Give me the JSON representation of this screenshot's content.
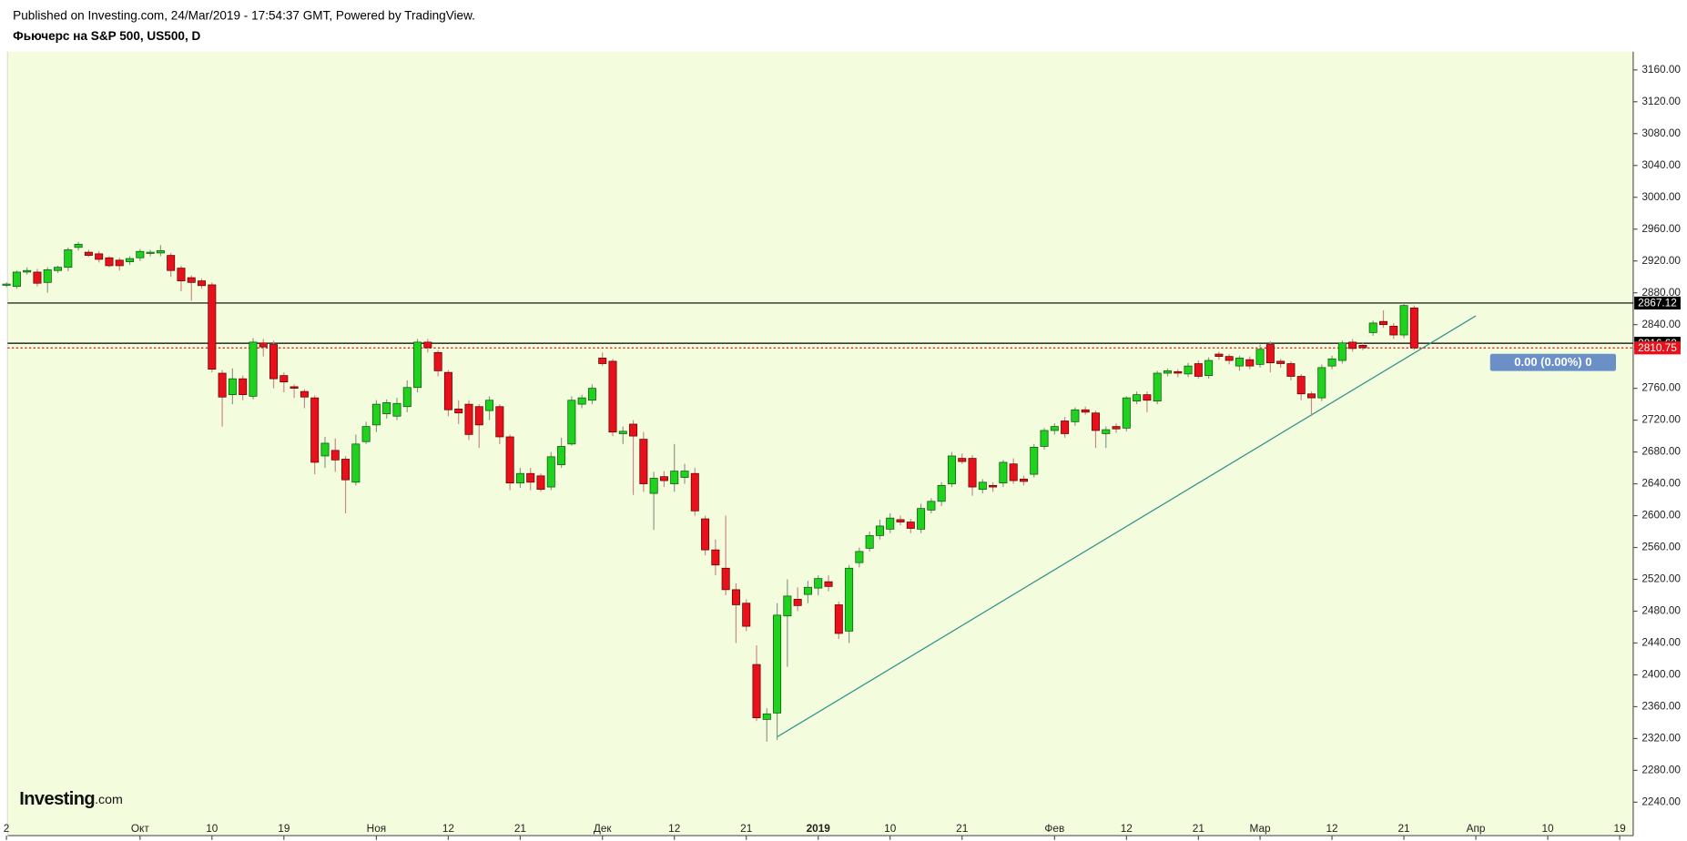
{
  "header": {
    "published": "Published on Investing.com, 24/Mar/2019 - 17:54:37 GMT, Powered by TradingView.",
    "title": "Фьючерс на S&P 500, US500, D"
  },
  "logo": {
    "brand": "Investing",
    "suffix": ".com"
  },
  "badge": "0.00 (0.00%) 0",
  "chart_data": {
    "type": "candlestick",
    "up_color": "#1ed21e",
    "down_color": "#e8101a",
    "background": "#f3fcdc",
    "categories": [
      "2",
      null,
      null,
      null,
      null,
      null,
      null,
      null,
      null,
      null,
      null,
      null,
      null,
      "Окт",
      null,
      null,
      null,
      null,
      null,
      null,
      "10",
      null,
      null,
      null,
      null,
      null,
      null,
      "19",
      null,
      null,
      null,
      null,
      null,
      null,
      null,
      null,
      "Ноя",
      null,
      null,
      null,
      null,
      null,
      null,
      "12",
      null,
      null,
      null,
      null,
      null,
      null,
      "21",
      null,
      null,
      null,
      null,
      null,
      null,
      null,
      "Дек",
      null,
      null,
      null,
      null,
      null,
      null,
      "12",
      null,
      null,
      null,
      null,
      null,
      null,
      "21",
      null,
      null,
      null,
      null,
      null,
      null,
      "2019",
      null,
      null,
      null,
      null,
      null,
      null,
      "10",
      null,
      null,
      null,
      null,
      null,
      null,
      "21",
      null,
      null,
      null,
      null,
      null,
      null,
      null,
      null,
      "Фев",
      null,
      null,
      null,
      null,
      null,
      null,
      "12",
      null,
      null,
      null,
      null,
      null,
      null,
      "21",
      null,
      null,
      null,
      null,
      null,
      "Мар",
      null,
      null,
      null,
      null,
      null,
      null,
      "12",
      null,
      null,
      null,
      null,
      null,
      null,
      "21",
      null,
      null,
      null,
      null,
      null,
      null,
      "Апр",
      null,
      null,
      null,
      null,
      null,
      null,
      "10",
      null,
      null,
      null,
      null,
      null,
      null,
      "19",
      null
    ],
    "open": [
      2890,
      2888,
      2906,
      2906,
      2893,
      2908,
      2912,
      2937,
      2931,
      2929,
      2924,
      2921,
      2919,
      2924,
      2930,
      2930,
      2927,
      2911,
      2899,
      2895,
      2890,
      2779,
      2752,
      2772,
      2750,
      2817,
      2815,
      2776,
      2762,
      2756,
      2748,
      2675,
      2682,
      2671,
      2642,
      2693,
      2714,
      2728,
      2725,
      2737,
      2761,
      2818,
      2805,
      2780,
      2734,
      2740,
      2737,
      2732,
      2737,
      2699,
      2641,
      2653,
      2650,
      2636,
      2664,
      2690,
      2740,
      2745,
      2798,
      2794,
      2703,
      2715,
      2696,
      2628,
      2649,
      2640,
      2648,
      2653,
      2596,
      2557,
      2534,
      2507,
      2490,
      2413,
      2344,
      2352,
      2474,
      2495,
      2501,
      2509,
      2517,
      2488,
      2455,
      2541,
      2559,
      2575,
      2583,
      2595,
      2592,
      2583,
      2607,
      2618,
      2640,
      2672,
      2672,
      2633,
      2638,
      2641,
      2665,
      2646,
      2652,
      2687,
      2707,
      2719,
      2718,
      2733,
      2729,
      2703,
      2712,
      2710,
      2744,
      2752,
      2744,
      2779,
      2781,
      2778,
      2791,
      2776,
      2803,
      2800,
      2788,
      2796,
      2790,
      2815,
      2794,
      2791,
      2775,
      2753,
      2748,
      2788,
      2795,
      2818,
      2814,
      2830,
      2844,
      2838,
      2827,
      2861,
      null,
      null,
      null,
      null,
      null,
      null,
      null,
      null,
      null,
      null,
      null,
      null,
      null,
      null,
      null,
      null,
      null,
      null,
      null,
      null,
      null
    ],
    "high": [
      2893,
      2908,
      2912,
      2910,
      2912,
      2914,
      2937,
      2944,
      2934,
      2932,
      2926,
      2924,
      2926,
      2935,
      2934,
      2940,
      2930,
      2914,
      2902,
      2898,
      2893,
      2783,
      2785,
      2776,
      2823,
      2822,
      2820,
      2780,
      2765,
      2759,
      2751,
      2699,
      2697,
      2675,
      2702,
      2718,
      2745,
      2746,
      2748,
      2770,
      2822,
      2822,
      2808,
      2783,
      2745,
      2745,
      2740,
      2750,
      2740,
      2702,
      2660,
      2660,
      2653,
      2680,
      2698,
      2750,
      2752,
      2765,
      2805,
      2797,
      2712,
      2720,
      2705,
      2655,
      2656,
      2690,
      2665,
      2660,
      2600,
      2570,
      2600,
      2515,
      2495,
      2437,
      2358,
      2490,
      2520,
      2510,
      2518,
      2525,
      2525,
      2492,
      2538,
      2560,
      2580,
      2595,
      2603,
      2600,
      2596,
      2615,
      2622,
      2642,
      2680,
      2678,
      2676,
      2646,
      2642,
      2670,
      2672,
      2650,
      2690,
      2710,
      2716,
      2724,
      2736,
      2737,
      2732,
      2712,
      2716,
      2750,
      2756,
      2756,
      2782,
      2785,
      2784,
      2792,
      2795,
      2799,
      2806,
      2803,
      2801,
      2800,
      2815,
      2819,
      2797,
      2794,
      2778,
      2756,
      2790,
      2801,
      2820,
      2822,
      2817,
      2845,
      2858,
      2842,
      2867,
      2864,
      null,
      null,
      null,
      null,
      null,
      null,
      null,
      null,
      null,
      null,
      null,
      null,
      null,
      null,
      null,
      null,
      null,
      null,
      null,
      null,
      null
    ],
    "low": [
      2887,
      2885,
      2903,
      2888,
      2880,
      2905,
      2907,
      2933,
      2925,
      2918,
      2912,
      2908,
      2915,
      2920,
      2926,
      2926,
      2900,
      2882,
      2870,
      2885,
      2780,
      2712,
      2740,
      2745,
      2746,
      2800,
      2760,
      2755,
      2748,
      2735,
      2652,
      2660,
      2655,
      2603,
      2638,
      2690,
      2705,
      2722,
      2720,
      2730,
      2755,
      2805,
      2775,
      2725,
      2715,
      2695,
      2685,
      2720,
      2690,
      2632,
      2635,
      2632,
      2630,
      2632,
      2660,
      2688,
      2735,
      2740,
      2788,
      2700,
      2690,
      2626,
      2630,
      2582,
      2636,
      2630,
      2640,
      2600,
      2550,
      2525,
      2500,
      2440,
      2455,
      2342,
      2316,
      2318,
      2410,
      2480,
      2490,
      2500,
      2505,
      2445,
      2440,
      2535,
      2555,
      2570,
      2578,
      2588,
      2578,
      2578,
      2603,
      2612,
      2636,
      2665,
      2625,
      2628,
      2630,
      2636,
      2640,
      2638,
      2648,
      2683,
      2702,
      2698,
      2713,
      2727,
      2685,
      2685,
      2704,
      2706,
      2740,
      2730,
      2740,
      2775,
      2774,
      2774,
      2772,
      2772,
      2796,
      2790,
      2782,
      2784,
      2786,
      2780,
      2786,
      2770,
      2745,
      2725,
      2744,
      2784,
      2791,
      2806,
      2808,
      2826,
      2836,
      2822,
      2823,
      2808,
      null,
      null,
      null,
      null,
      null,
      null,
      null,
      null,
      null,
      null,
      null,
      null,
      null,
      null,
      null,
      null,
      null,
      null,
      null,
      null,
      null
    ],
    "close": [
      2891,
      2906,
      2908,
      2892,
      2909,
      2912,
      2934,
      2941,
      2927,
      2922,
      2914,
      2914,
      2923,
      2932,
      2931,
      2933,
      2908,
      2895,
      2893,
      2889,
      2784,
      2749,
      2772,
      2752,
      2818,
      2812,
      2772,
      2768,
      2760,
      2749,
      2667,
      2691,
      2670,
      2645,
      2690,
      2712,
      2740,
      2742,
      2741,
      2761,
      2818,
      2811,
      2782,
      2733,
      2729,
      2702,
      2714,
      2745,
      2699,
      2641,
      2653,
      2642,
      2633,
      2674,
      2687,
      2745,
      2748,
      2760,
      2791,
      2705,
      2706,
      2700,
      2640,
      2647,
      2644,
      2656,
      2656,
      2606,
      2557,
      2538,
      2507,
      2488,
      2461,
      2346,
      2351,
      2475,
      2499,
      2487,
      2510,
      2521,
      2511,
      2452,
      2534,
      2555,
      2575,
      2587,
      2597,
      2592,
      2584,
      2609,
      2618,
      2638,
      2675,
      2668,
      2636,
      2642,
      2636,
      2667,
      2644,
      2643,
      2686,
      2707,
      2712,
      2703,
      2733,
      2730,
      2707,
      2708,
      2709,
      2748,
      2752,
      2745,
      2779,
      2782,
      2779,
      2788,
      2775,
      2795,
      2800,
      2795,
      2798,
      2788,
      2809,
      2792,
      2791,
      2775,
      2753,
      2748,
      2786,
      2797,
      2817,
      2810,
      2811,
      2842,
      2840,
      2827,
      2864,
      2810.75,
      null,
      null,
      null,
      null,
      null,
      null,
      null,
      null,
      null,
      null,
      null,
      null,
      null,
      null,
      null,
      null,
      null,
      null,
      null,
      null,
      null
    ],
    "ylim": [
      2198,
      3183
    ],
    "yticks": [
      {
        "value": 2240,
        "label": "2240.00"
      },
      {
        "value": 2280,
        "label": "2280.00"
      },
      {
        "value": 2320,
        "label": "2320.00"
      },
      {
        "value": 2360,
        "label": "2360.00"
      },
      {
        "value": 2400,
        "label": "2400.00"
      },
      {
        "value": 2440,
        "label": "2440.00"
      },
      {
        "value": 2480,
        "label": "2480.00"
      },
      {
        "value": 2520,
        "label": "2520.00"
      },
      {
        "value": 2560,
        "label": "2560.00"
      },
      {
        "value": 2600,
        "label": "2600.00"
      },
      {
        "value": 2640,
        "label": "2640.00"
      },
      {
        "value": 2680,
        "label": "2680.00"
      },
      {
        "value": 2720,
        "label": "2720.00"
      },
      {
        "value": 2760,
        "label": "2760.00"
      },
      {
        "value": 2840,
        "label": "2840.00"
      },
      {
        "value": 2880,
        "label": "2880.00"
      },
      {
        "value": 2920,
        "label": "2920.00"
      },
      {
        "value": 2960,
        "label": "2960.00"
      },
      {
        "value": 3000,
        "label": "3000.00"
      },
      {
        "value": 3040,
        "label": "3040.00"
      },
      {
        "value": 3080,
        "label": "3080.00"
      },
      {
        "value": 3120,
        "label": "3120.00"
      },
      {
        "value": 3160,
        "label": "3160.00"
      }
    ],
    "price_lines": [
      {
        "value": 2867.12,
        "color": "#000000",
        "dotted": false
      },
      {
        "value": 2816.62,
        "color": "#000000",
        "dotted": false
      },
      {
        "value": 2810.75,
        "color": "#e8101a",
        "dotted": true
      }
    ],
    "trendline": {
      "x": [
        75,
        143
      ],
      "y": [
        2322,
        2851
      ],
      "color": "#2a8a8a"
    }
  }
}
